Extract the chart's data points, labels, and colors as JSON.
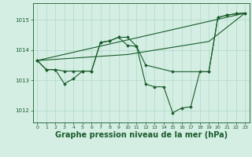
{
  "bg_color": "#d4eee4",
  "grid_color": "#b0d8c8",
  "line_color": "#1a5c2a",
  "marker_color": "#1a5c2a",
  "xlabel": "Graphe pression niveau de la mer (hPa)",
  "xlabel_fontsize": 7,
  "xlim": [
    -0.5,
    23.5
  ],
  "ylim": [
    1011.6,
    1015.55
  ],
  "yticks": [
    1012,
    1013,
    1014,
    1015
  ],
  "xticks": [
    0,
    1,
    2,
    3,
    4,
    5,
    6,
    7,
    8,
    9,
    10,
    11,
    12,
    13,
    14,
    15,
    16,
    17,
    18,
    19,
    20,
    21,
    22,
    23
  ],
  "line1_x": [
    0,
    1,
    2,
    3,
    4,
    5,
    6,
    7,
    8,
    9,
    10,
    11,
    12,
    13,
    14,
    15,
    16,
    17,
    18,
    19,
    20,
    21,
    22,
    23
  ],
  "line1_y": [
    1013.65,
    1013.35,
    1013.35,
    1012.88,
    1013.05,
    1013.3,
    1013.3,
    1014.25,
    1014.3,
    1014.42,
    1014.15,
    1014.12,
    1012.87,
    1012.78,
    1012.78,
    1011.92,
    1012.08,
    1012.12,
    1013.28,
    1013.28,
    1015.08,
    1015.15,
    1015.2,
    1015.22
  ],
  "line2_x": [
    0,
    1,
    2,
    3,
    4,
    5,
    6,
    7,
    8,
    9,
    10,
    11,
    12,
    15,
    19,
    20,
    21,
    22,
    23
  ],
  "line2_y": [
    1013.65,
    1013.35,
    1013.35,
    1013.3,
    1013.3,
    1013.3,
    1013.3,
    1014.25,
    1014.3,
    1014.42,
    1014.42,
    1014.12,
    1013.5,
    1013.28,
    1013.28,
    1015.08,
    1015.15,
    1015.2,
    1015.22
  ],
  "line3_x": [
    0,
    23
  ],
  "line3_y": [
    1013.65,
    1015.22
  ],
  "line4_x": [
    0,
    10,
    19,
    23
  ],
  "line4_y": [
    1013.65,
    1013.85,
    1014.28,
    1015.22
  ]
}
